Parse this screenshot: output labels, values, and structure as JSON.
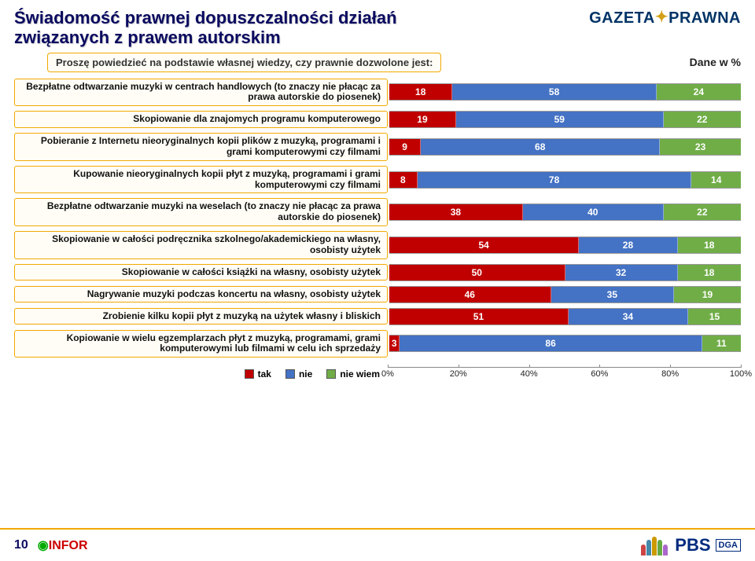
{
  "header": {
    "title_line1": "Świadomość prawnej dopuszczalności działań",
    "title_line2": "związanych z prawem autorskim",
    "brand_a": "GAZETA",
    "brand_b": "PRAWNA",
    "subtitle": "Proszę powiedzieć na podstawie własnej wiedzy, czy prawnie dozwolone jest:",
    "units": "Dane w %"
  },
  "chart": {
    "type": "stacked-bar-horizontal",
    "colors": {
      "yes": "#c00000",
      "no": "#4472c4",
      "dk": "#70ad47"
    },
    "xlim": [
      0,
      100
    ],
    "xticks": [
      "0%",
      "20%",
      "40%",
      "60%",
      "80%",
      "100%"
    ],
    "legend": [
      "tak",
      "nie",
      "nie wiem"
    ],
    "rows": [
      {
        "label": "Bezpłatne odtwarzanie muzyki w centrach handlowych (to znaczy nie płacąc za prawa autorskie do piosenek)",
        "v": [
          18,
          58,
          24
        ]
      },
      {
        "label": "Skopiowanie dla znajomych programu komputerowego",
        "v": [
          19,
          59,
          22
        ]
      },
      {
        "label": "Pobieranie z Internetu nieoryginalnych kopii plików z muzyką, programami i grami komputerowymi czy filmami",
        "v": [
          9,
          68,
          23
        ]
      },
      {
        "label": "Kupowanie nieoryginalnych kopii płyt z muzyką, programami i grami komputerowymi czy filmami",
        "v": [
          8,
          78,
          14
        ]
      },
      {
        "label": "Bezpłatne odtwarzanie muzyki na weselach (to znaczy nie płacąc za prawa autorskie do piosenek)",
        "v": [
          38,
          40,
          22
        ]
      },
      {
        "label": "Skopiowanie w całości podręcznika szkolnego/akademickiego na własny, osobisty użytek",
        "v": [
          54,
          28,
          18
        ]
      },
      {
        "label": "Skopiowanie w całości książki na własny, osobisty użytek",
        "v": [
          50,
          32,
          18
        ]
      },
      {
        "label": "Nagrywanie muzyki podczas koncertu na własny, osobisty użytek",
        "v": [
          46,
          35,
          19
        ]
      },
      {
        "label": "Zrobienie kilku kopii płyt z muzyką na użytek własny i bliskich",
        "v": [
          51,
          34,
          15
        ]
      },
      {
        "label": "Kopiowanie w wielu egzemplarzach płyt z muzyką, programami, grami komputerowymi lub filmami w celu ich sprzedaży",
        "v": [
          3,
          86,
          11
        ]
      }
    ]
  },
  "footer": {
    "page": "10",
    "infor": "INFOR",
    "pbs": "PBS",
    "dga": "DGA"
  }
}
